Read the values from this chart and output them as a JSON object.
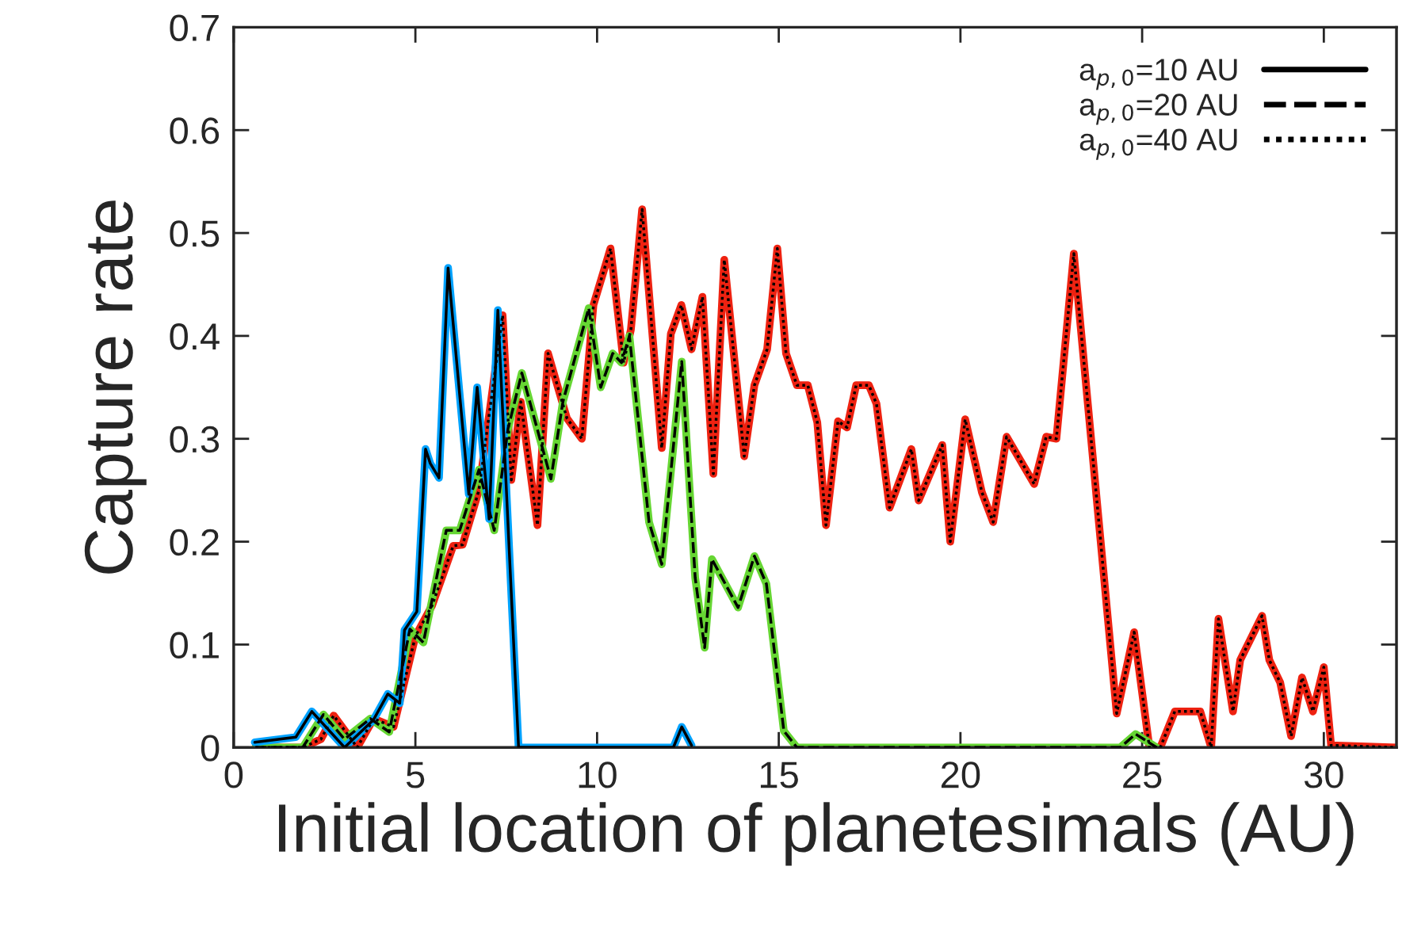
{
  "chart_data": {
    "type": "line",
    "xlabel": "Initial location of planetesimals (AU)",
    "ylabel": "Capture rate",
    "xlim": [
      0,
      32
    ],
    "ylim": [
      0,
      0.7
    ],
    "xticks": [
      0,
      5,
      10,
      15,
      20,
      25,
      30
    ],
    "yticks": [
      0,
      0.1,
      0.2,
      0.3,
      0.4,
      0.5,
      0.6,
      0.7
    ],
    "grid": false,
    "legend": "top right",
    "marker": "none",
    "series": [
      {
        "name": "a$_{p,0}$=10 AU",
        "color": "#000000",
        "line_style": "solid",
        "x": [
          0.58,
          1.71,
          2.15,
          3.05,
          3.85,
          4.24,
          4.57,
          4.7,
          5.04,
          5.28,
          5.41,
          5.65,
          5.9,
          6.47,
          6.7,
          7.03,
          7.27,
          7.84,
          12.1,
          12.33,
          12.6
        ],
        "values": [
          0.005,
          0.01,
          0.035,
          0.0,
          0.027,
          0.052,
          0.043,
          0.114,
          0.132,
          0.29,
          0.276,
          0.262,
          0.466,
          0.246,
          0.35,
          0.222,
          0.425,
          0.0,
          0.0,
          0.02,
          0.002
        ]
      },
      {
        "name": "a$_{p,0}$=20 AU",
        "color": "#000000",
        "line_style": "dashed",
        "x": [
          0.6,
          1.9,
          2.47,
          3.05,
          3.76,
          4.28,
          4.85,
          5.22,
          5.85,
          6.22,
          6.75,
          7.17,
          7.55,
          7.93,
          8.73,
          9.06,
          9.77,
          10.1,
          10.43,
          10.67,
          10.89,
          11.43,
          11.78,
          12.33,
          12.7,
          12.96,
          13.16,
          13.88,
          14.33,
          14.66,
          15.14,
          15.5,
          24.4,
          24.82,
          25.4
        ],
        "values": [
          0.0,
          0.0,
          0.032,
          0.008,
          0.028,
          0.015,
          0.115,
          0.102,
          0.211,
          0.211,
          0.27,
          0.211,
          0.31,
          0.364,
          0.261,
          0.336,
          0.427,
          0.35,
          0.383,
          0.374,
          0.4,
          0.219,
          0.178,
          0.375,
          0.165,
          0.097,
          0.183,
          0.136,
          0.186,
          0.159,
          0.016,
          0.0,
          0.0,
          0.013,
          0.0
        ]
      },
      {
        "name": "a$_{p,0}$=40 AU",
        "color": "#000000",
        "line_style": "dotted",
        "x": [
          0.6,
          1.9,
          2.4,
          2.75,
          3.4,
          3.85,
          4.4,
          5.0,
          5.46,
          6.04,
          6.3,
          6.75,
          7.4,
          7.64,
          7.9,
          8.36,
          8.65,
          9.17,
          9.58,
          9.9,
          10.37,
          10.73,
          10.93,
          11.24,
          11.78,
          12.03,
          12.32,
          12.6,
          12.9,
          13.2,
          13.5,
          14.05,
          14.33,
          14.68,
          14.96,
          15.2,
          15.5,
          15.8,
          16.06,
          16.3,
          16.63,
          16.88,
          17.13,
          17.48,
          17.69,
          18.05,
          18.65,
          18.85,
          19.5,
          19.72,
          20.13,
          20.59,
          20.9,
          21.27,
          22.03,
          22.36,
          22.64,
          23.12,
          24.3,
          24.78,
          25.2,
          25.5,
          25.9,
          26.6,
          26.9,
          27.1,
          27.5,
          27.7,
          28.3,
          28.5,
          28.8,
          29.1,
          29.4,
          29.7,
          30.0,
          30.2,
          32.0
        ],
        "values": [
          0.0,
          0.0,
          0.008,
          0.031,
          0.0,
          0.028,
          0.02,
          0.108,
          0.138,
          0.196,
          0.197,
          0.25,
          0.42,
          0.26,
          0.336,
          0.216,
          0.383,
          0.32,
          0.3,
          0.43,
          0.485,
          0.374,
          0.406,
          0.523,
          0.291,
          0.402,
          0.43,
          0.387,
          0.438,
          0.266,
          0.474,
          0.283,
          0.352,
          0.387,
          0.485,
          0.383,
          0.352,
          0.352,
          0.316,
          0.216,
          0.317,
          0.311,
          0.352,
          0.352,
          0.334,
          0.233,
          0.29,
          0.24,
          0.294,
          0.2,
          0.319,
          0.248,
          0.219,
          0.302,
          0.256,
          0.302,
          0.3,
          0.48,
          0.033,
          0.112,
          0.0,
          0.0,
          0.035,
          0.035,
          0.0,
          0.125,
          0.035,
          0.085,
          0.128,
          0.085,
          0.063,
          0.011,
          0.068,
          0.035,
          0.078,
          0.002,
          0.0
        ]
      },
      {
        "color": "#ee2211",
        "line_style": "solid",
        "x": [
          0.6,
          1.9,
          2.4,
          2.75,
          3.4,
          3.85,
          4.4,
          5.0,
          5.46,
          6.04,
          6.3,
          6.75,
          7.4,
          7.64,
          7.9,
          8.36,
          8.65,
          9.17,
          9.58,
          9.9,
          10.37,
          10.73,
          10.93,
          11.24,
          11.78,
          12.03,
          12.32,
          12.6,
          12.9,
          13.2,
          13.5,
          14.05,
          14.33,
          14.68,
          14.96,
          15.2,
          15.5,
          15.8,
          16.06,
          16.3,
          16.63,
          16.88,
          17.13,
          17.48,
          17.69,
          18.05,
          18.65,
          18.85,
          19.5,
          19.72,
          20.13,
          20.59,
          20.9,
          21.27,
          22.03,
          22.36,
          22.64,
          23.12,
          24.3,
          24.78,
          25.2,
          25.5,
          25.9,
          26.6,
          26.9,
          27.1,
          27.5,
          27.7,
          28.3,
          28.5,
          28.8,
          29.1,
          29.4,
          29.7,
          30.0,
          30.2,
          32.0
        ],
        "values": [
          0.0,
          0.0,
          0.008,
          0.031,
          0.0,
          0.028,
          0.02,
          0.108,
          0.138,
          0.196,
          0.197,
          0.25,
          0.42,
          0.26,
          0.336,
          0.216,
          0.383,
          0.32,
          0.3,
          0.43,
          0.485,
          0.374,
          0.406,
          0.523,
          0.291,
          0.402,
          0.43,
          0.387,
          0.438,
          0.266,
          0.474,
          0.283,
          0.352,
          0.387,
          0.485,
          0.383,
          0.352,
          0.352,
          0.316,
          0.216,
          0.317,
          0.311,
          0.352,
          0.352,
          0.334,
          0.233,
          0.29,
          0.24,
          0.294,
          0.2,
          0.319,
          0.248,
          0.219,
          0.302,
          0.256,
          0.302,
          0.3,
          0.48,
          0.033,
          0.112,
          0.0,
          0.0,
          0.035,
          0.035,
          0.0,
          0.125,
          0.035,
          0.085,
          0.128,
          0.085,
          0.063,
          0.011,
          0.068,
          0.035,
          0.078,
          0.002,
          0.0
        ]
      },
      {
        "color": "#66d633",
        "line_style": "solid",
        "x": [
          0.6,
          1.9,
          2.47,
          3.05,
          3.76,
          4.28,
          4.85,
          5.22,
          5.85,
          6.22,
          6.75,
          7.17,
          7.55,
          7.93,
          8.73,
          9.06,
          9.77,
          10.1,
          10.43,
          10.67,
          10.89,
          11.43,
          11.78,
          12.33,
          12.7,
          12.96,
          13.16,
          13.88,
          14.33,
          14.66,
          15.14,
          15.5,
          24.4,
          24.82,
          25.4
        ],
        "values": [
          0.0,
          0.0,
          0.032,
          0.008,
          0.028,
          0.015,
          0.115,
          0.102,
          0.211,
          0.211,
          0.27,
          0.211,
          0.31,
          0.364,
          0.261,
          0.336,
          0.427,
          0.35,
          0.383,
          0.374,
          0.4,
          0.219,
          0.178,
          0.375,
          0.165,
          0.097,
          0.183,
          0.136,
          0.186,
          0.159,
          0.016,
          0.0,
          0.0,
          0.013,
          0.0
        ]
      },
      {
        "color": "#00a2ff",
        "line_style": "solid",
        "x": [
          0.58,
          1.71,
          2.15,
          3.05,
          3.85,
          4.24,
          4.57,
          4.7,
          5.04,
          5.28,
          5.41,
          5.65,
          5.9,
          6.47,
          6.7,
          7.03,
          7.27,
          7.84,
          12.1,
          12.33,
          12.6
        ],
        "values": [
          0.005,
          0.01,
          0.035,
          0.0,
          0.027,
          0.052,
          0.043,
          0.114,
          0.132,
          0.29,
          0.276,
          0.262,
          0.466,
          0.246,
          0.35,
          0.222,
          0.425,
          0.0,
          0.0,
          0.02,
          0.002
        ]
      }
    ]
  }
}
